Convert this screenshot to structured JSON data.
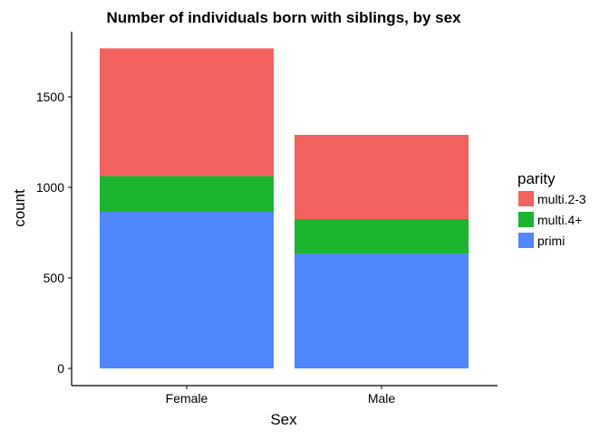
{
  "chart_data": {
    "type": "bar",
    "stacked": true,
    "title": "Number of individuals born with siblings, by sex",
    "xlabel": "Sex",
    "ylabel": "count",
    "categories": [
      "Female",
      "Male"
    ],
    "ylim": [
      0,
      1800
    ],
    "yticks": [
      0,
      500,
      1000,
      1500
    ],
    "ytick_labels": [
      "0",
      "500",
      "1000",
      "1500"
    ],
    "grid": false,
    "legend": {
      "title": "parity",
      "placement": "right"
    },
    "series": [
      {
        "name": "primi",
        "values": [
          865,
          633
        ],
        "color": "#4F87FF"
      },
      {
        "name": "multi.4+",
        "values": [
          198,
          192
        ],
        "color": "#1BB52E"
      },
      {
        "name": "multi.2-3",
        "values": [
          705,
          465
        ],
        "color": "#F4625F"
      }
    ],
    "legend_order": [
      "multi.2-3",
      "multi.4+",
      "primi"
    ]
  }
}
